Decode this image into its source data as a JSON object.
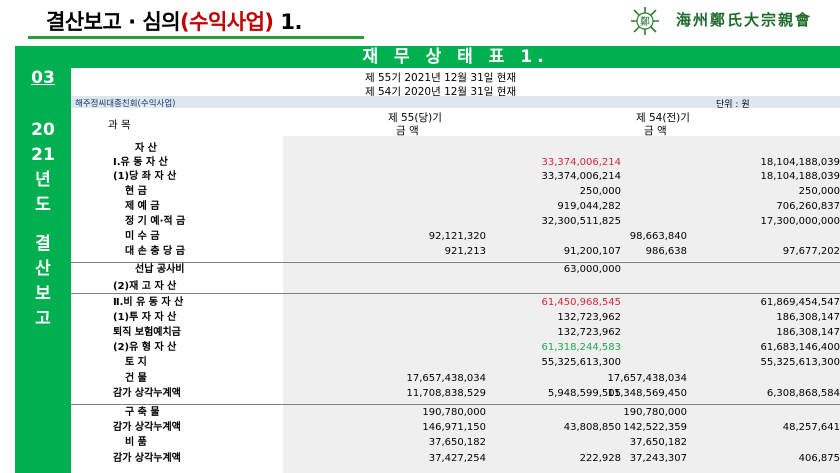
{
  "header": {
    "title_prefix": "결산보고 · 심의",
    "title_highlight": "(수익사업)",
    "title_suffix": " 1.",
    "logo_text": "海州鄭氏大宗親會",
    "logo_mark": "鄭"
  },
  "sidebar": {
    "section_number": "03",
    "year_lines": [
      "20",
      "21",
      "년",
      "도"
    ],
    "title_lines": [
      "결",
      "산",
      "보",
      "고"
    ]
  },
  "table_title": "재 무 상 태 표 1.",
  "periods": [
    "제  55기  2021년 12월 31일 현재",
    "제  54기  2020년 12월 31일 현재"
  ],
  "org_name": "해주정씨대종친회(수익사업)",
  "unit": "단위 : 원",
  "columns": {
    "subject": "과    목",
    "current": "제 55(당)기",
    "prior": "제 54(전)기",
    "amount": "금    액"
  },
  "rows": [
    {
      "label": "자             산",
      "c1": "",
      "c2": "",
      "c3": "",
      "c4": ""
    },
    {
      "label": "Ⅰ.유  동  자  산",
      "c1": "",
      "c2": "33,374,006,214",
      "c3": "",
      "c4": "18,104,188,039",
      "color": "red"
    },
    {
      "label": "(1)당  좌  자  산",
      "c1": "",
      "c2": "33,374,006,214",
      "c3": "",
      "c4": "18,104,188,039"
    },
    {
      "label": "현             금",
      "c1": "",
      "c2": "250,000",
      "c3": "",
      "c4": "250,000"
    },
    {
      "label": "제      예      금",
      "c1": "",
      "c2": "919,044,282",
      "c3": "",
      "c4": "706,260,837"
    },
    {
      "label": "정 기 예·적 금",
      "c1": "",
      "c2": "32,300,511,825",
      "c3": "",
      "c4": "17,300,000,000"
    },
    {
      "label": "미      수      금",
      "c1": "92,121,320",
      "c2": "",
      "c3": "98,663,840",
      "c4": ""
    },
    {
      "label": "대 손 충 당 금",
      "c1": "921,213",
      "c2": "91,200,107",
      "c3": "986,638",
      "c4": "97,677,202"
    },
    {
      "label": "선납 공사비",
      "c1": "",
      "c2": "63,000,000",
      "c3": "",
      "c4": ""
    },
    {
      "label": "(2)재  고  자  산",
      "c1": "",
      "c2": "",
      "c3": "",
      "c4": ""
    },
    {
      "label": "Ⅱ.비 유 동 자 산",
      "c1": "",
      "c2": "61,450,968,545",
      "c3": "",
      "c4": "61,869,454,547",
      "color": "red"
    },
    {
      "label": "(1)투  자  자  산",
      "c1": "",
      "c2": "132,723,962",
      "c3": "",
      "c4": "186,308,147"
    },
    {
      "label": "퇴직 보험예치금",
      "c1": "",
      "c2": "132,723,962",
      "c3": "",
      "c4": "186,308,147"
    },
    {
      "label": "(2)유  형  자  산",
      "c1": "",
      "c2": "61,318,244,583",
      "c3": "",
      "c4": "61,683,146,400",
      "color": "green"
    },
    {
      "label": "토             지",
      "c1": "",
      "c2": "55,325,613,300",
      "c3": "",
      "c4": "55,325,613,300"
    },
    {
      "label": "건             물",
      "c1": "17,657,438,034",
      "c2": "",
      "c3": "17,657,438,034",
      "c4": ""
    },
    {
      "label": "감가 상각누계액",
      "c1": "11,708,838,529",
      "c2": "5,948,599,505",
      "c3": "11,348,569,450",
      "c4": "6,308,868,584"
    },
    {
      "label": "구      축      물",
      "c1": "190,780,000",
      "c2": "",
      "c3": "190,780,000",
      "c4": ""
    },
    {
      "label": "감가 상각누계액",
      "c1": "146,971,150",
      "c2": "43,808,850",
      "c3": "142,522,359",
      "c4": "48,257,641"
    },
    {
      "label": "비             품",
      "c1": "37,650,182",
      "c2": "",
      "c3": "37,650,182",
      "c4": ""
    },
    {
      "label": "감가 상각누계액",
      "c1": "37,427,254",
      "c2": "222,928",
      "c3": "37,243,307",
      "c4": "406,875"
    }
  ],
  "colors": {
    "accent_green": "#00b050",
    "highlight_red": "#d7263d",
    "highlight_green": "#21a84a"
  }
}
